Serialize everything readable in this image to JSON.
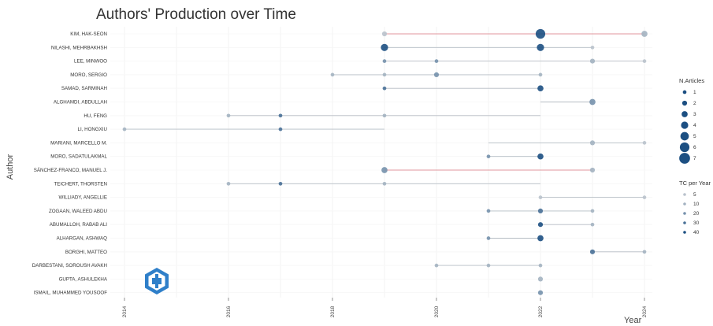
{
  "chart_data": {
    "type": "scatter",
    "title": "Authors' Production over Time",
    "xlabel": "Year",
    "ylabel": "Author",
    "xlim": [
      2014,
      2024
    ],
    "x_ticks": [
      "2014",
      "2016",
      "2018",
      "2020",
      "2022",
      "2024"
    ],
    "grid": true,
    "authors": [
      {
        "name": "KIM, HAK-SEON",
        "years": [
          2019,
          2022,
          2024
        ],
        "articles": [
          2,
          6,
          3
        ],
        "tc": [
          5,
          40,
          10
        ],
        "range": [
          2019,
          2024
        ]
      },
      {
        "name": "NILASHI, MEHRBAKHSH",
        "years": [
          2019,
          2022,
          2023
        ],
        "articles": [
          4,
          4,
          1
        ],
        "tc": [
          40,
          40,
          5
        ],
        "range": [
          2019,
          2023
        ]
      },
      {
        "name": "LEE, MINWOO",
        "years": [
          2019,
          2020,
          2023,
          2024
        ],
        "articles": [
          1,
          1,
          2,
          1
        ],
        "tc": [
          20,
          20,
          10,
          5
        ],
        "range": [
          2019,
          2024
        ]
      },
      {
        "name": "MORO, SERGIO",
        "years": [
          2018,
          2019,
          2020,
          2022
        ],
        "articles": [
          1,
          1,
          2,
          1
        ],
        "tc": [
          10,
          10,
          20,
          10
        ],
        "range": [
          2018,
          2022
        ]
      },
      {
        "name": "SAMAD, SARMINAH",
        "years": [
          2019,
          2022
        ],
        "articles": [
          1,
          3
        ],
        "tc": [
          30,
          40
        ],
        "range": [
          2019,
          2022
        ]
      },
      {
        "name": "ALGHAMDI, ABDULLAH",
        "years": [
          2023
        ],
        "articles": [
          3
        ],
        "tc": [
          20
        ],
        "range": [
          2022,
          2023
        ]
      },
      {
        "name": "HU, FENG",
        "years": [
          2016,
          2017,
          2019
        ],
        "articles": [
          1,
          1,
          1
        ],
        "tc": [
          10,
          30,
          10
        ],
        "range": [
          2016,
          2022
        ]
      },
      {
        "name": "LI, HONGXIU",
        "years": [
          2014,
          2017
        ],
        "articles": [
          1,
          1
        ],
        "tc": [
          10,
          30
        ],
        "range": [
          2014,
          2019
        ]
      },
      {
        "name": "MARIANI, MARCELLO M.",
        "years": [
          2023,
          2024
        ],
        "articles": [
          2,
          1
        ],
        "tc": [
          10,
          5
        ],
        "range": [
          2021,
          2024
        ]
      },
      {
        "name": "MORO, SADATULAKMAL",
        "years": [
          2021,
          2022
        ],
        "articles": [
          1,
          3
        ],
        "tc": [
          20,
          40
        ],
        "range": [
          2021,
          2022
        ]
      },
      {
        "name": "SÁNCHEZ-FRANCO, MANUEL J.",
        "years": [
          2019,
          2023
        ],
        "articles": [
          3,
          2
        ],
        "tc": [
          20,
          10
        ],
        "range": [
          2019,
          2023
        ]
      },
      {
        "name": "TEICHERT, THORSTEN",
        "years": [
          2016,
          2017,
          2019
        ],
        "articles": [
          1,
          1,
          1
        ],
        "tc": [
          10,
          30,
          10
        ],
        "range": [
          2016,
          2022
        ]
      },
      {
        "name": "WILLIADY, ANGELLIE",
        "years": [
          2022,
          2024
        ],
        "articles": [
          1,
          1
        ],
        "tc": [
          5,
          5
        ],
        "range": [
          2022,
          2024
        ]
      },
      {
        "name": "ZOGAAN, WALEED ABDU",
        "years": [
          2021,
          2022,
          2023
        ],
        "articles": [
          1,
          2,
          1
        ],
        "tc": [
          20,
          30,
          10
        ],
        "range": [
          2021,
          2023
        ]
      },
      {
        "name": "ABUMALLOH, RABAB ALI",
        "years": [
          2022,
          2023
        ],
        "articles": [
          2,
          1
        ],
        "tc": [
          40,
          10
        ],
        "range": [
          2022,
          2023
        ]
      },
      {
        "name": "ALHARGAN, ASHWAQ",
        "years": [
          2021,
          2022
        ],
        "articles": [
          1,
          3
        ],
        "tc": [
          20,
          40
        ],
        "range": [
          2021,
          2022
        ]
      },
      {
        "name": "BORGHI, MATTEO",
        "years": [
          2023,
          2024
        ],
        "articles": [
          2,
          1
        ],
        "tc": [
          30,
          10
        ],
        "range": [
          2023,
          2024
        ]
      },
      {
        "name": "DARBESTANI, SOROUSH AVAKH",
        "years": [
          2020,
          2021,
          2022
        ],
        "articles": [
          1,
          1,
          1
        ],
        "tc": [
          10,
          10,
          10
        ],
        "range": [
          2020,
          2022
        ]
      },
      {
        "name": "GUPTA, ASHULEKHA",
        "years": [
          2022
        ],
        "articles": [
          2
        ],
        "tc": [
          10
        ],
        "range": [
          2022,
          2022
        ]
      },
      {
        "name": "ISMAIL, MUHAMMED YOUSOOF",
        "years": [
          2022
        ],
        "articles": [
          2
        ],
        "tc": [
          20
        ],
        "range": [
          2022,
          2022
        ]
      }
    ],
    "legend_articles": {
      "title": "N.Articles",
      "items": [
        1,
        2,
        3,
        4,
        5,
        6,
        7
      ]
    },
    "legend_tc": {
      "title": "TC per Year",
      "items": [
        5,
        10,
        20,
        30,
        40
      ]
    },
    "colors": {
      "point_dark": "#1c4f82",
      "point_light": "#b9c2cc",
      "segment": "#b5bcc4",
      "segment_highlight": "#e0969c"
    }
  },
  "logo": {
    "name": "bibliometrix-logo"
  }
}
